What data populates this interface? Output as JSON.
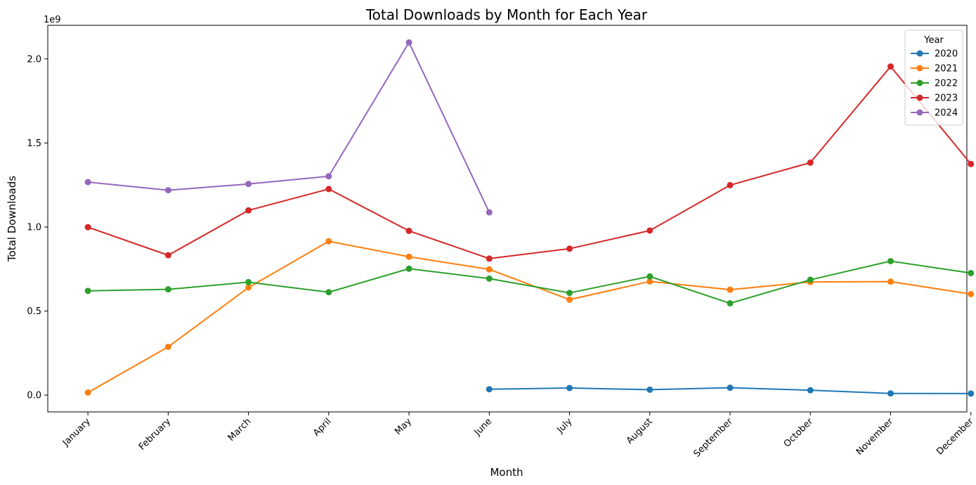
{
  "chart_data": {
    "type": "line",
    "title": "Total Downloads by Month for Each Year",
    "xlabel": "Month",
    "ylabel": "Total Downloads",
    "y_offset_label": "1e9",
    "categories": [
      "January",
      "February",
      "March",
      "April",
      "May",
      "June",
      "July",
      "August",
      "September",
      "October",
      "November",
      "December"
    ],
    "ylim": [
      -0.1,
      2.2
    ],
    "yticks": [
      0.0,
      0.5,
      1.0,
      1.5,
      2.0
    ],
    "ytick_labels": [
      "0.0",
      "0.5",
      "1.0",
      "1.5",
      "2.0"
    ],
    "grid": false,
    "legend": {
      "title": "Year",
      "placement": "top-right"
    },
    "series": [
      {
        "name": "2020",
        "color": "#1f77b4",
        "values": [
          null,
          null,
          null,
          null,
          null,
          0.035,
          0.042,
          0.032,
          0.044,
          0.029,
          0.01,
          0.009
        ]
      },
      {
        "name": "2021",
        "color": "#ff7f0e",
        "values": [
          0.015,
          0.287,
          0.64,
          0.915,
          0.823,
          0.748,
          0.568,
          0.676,
          0.627,
          0.673,
          0.675,
          0.601
        ]
      },
      {
        "name": "2022",
        "color": "#2ca02c",
        "values": [
          0.62,
          0.629,
          0.672,
          0.612,
          0.752,
          0.693,
          0.608,
          0.706,
          0.546,
          0.686,
          0.797,
          0.726
        ]
      },
      {
        "name": "2023",
        "color": "#d62728",
        "values": [
          0.999,
          0.832,
          1.099,
          1.226,
          0.977,
          0.812,
          0.871,
          0.979,
          1.249,
          1.383,
          1.955,
          1.375
        ]
      },
      {
        "name": "2024",
        "color": "#9467bd",
        "values": [
          1.267,
          1.219,
          1.256,
          1.302,
          2.098,
          1.087,
          null,
          null,
          null,
          null,
          null,
          null
        ]
      }
    ]
  }
}
